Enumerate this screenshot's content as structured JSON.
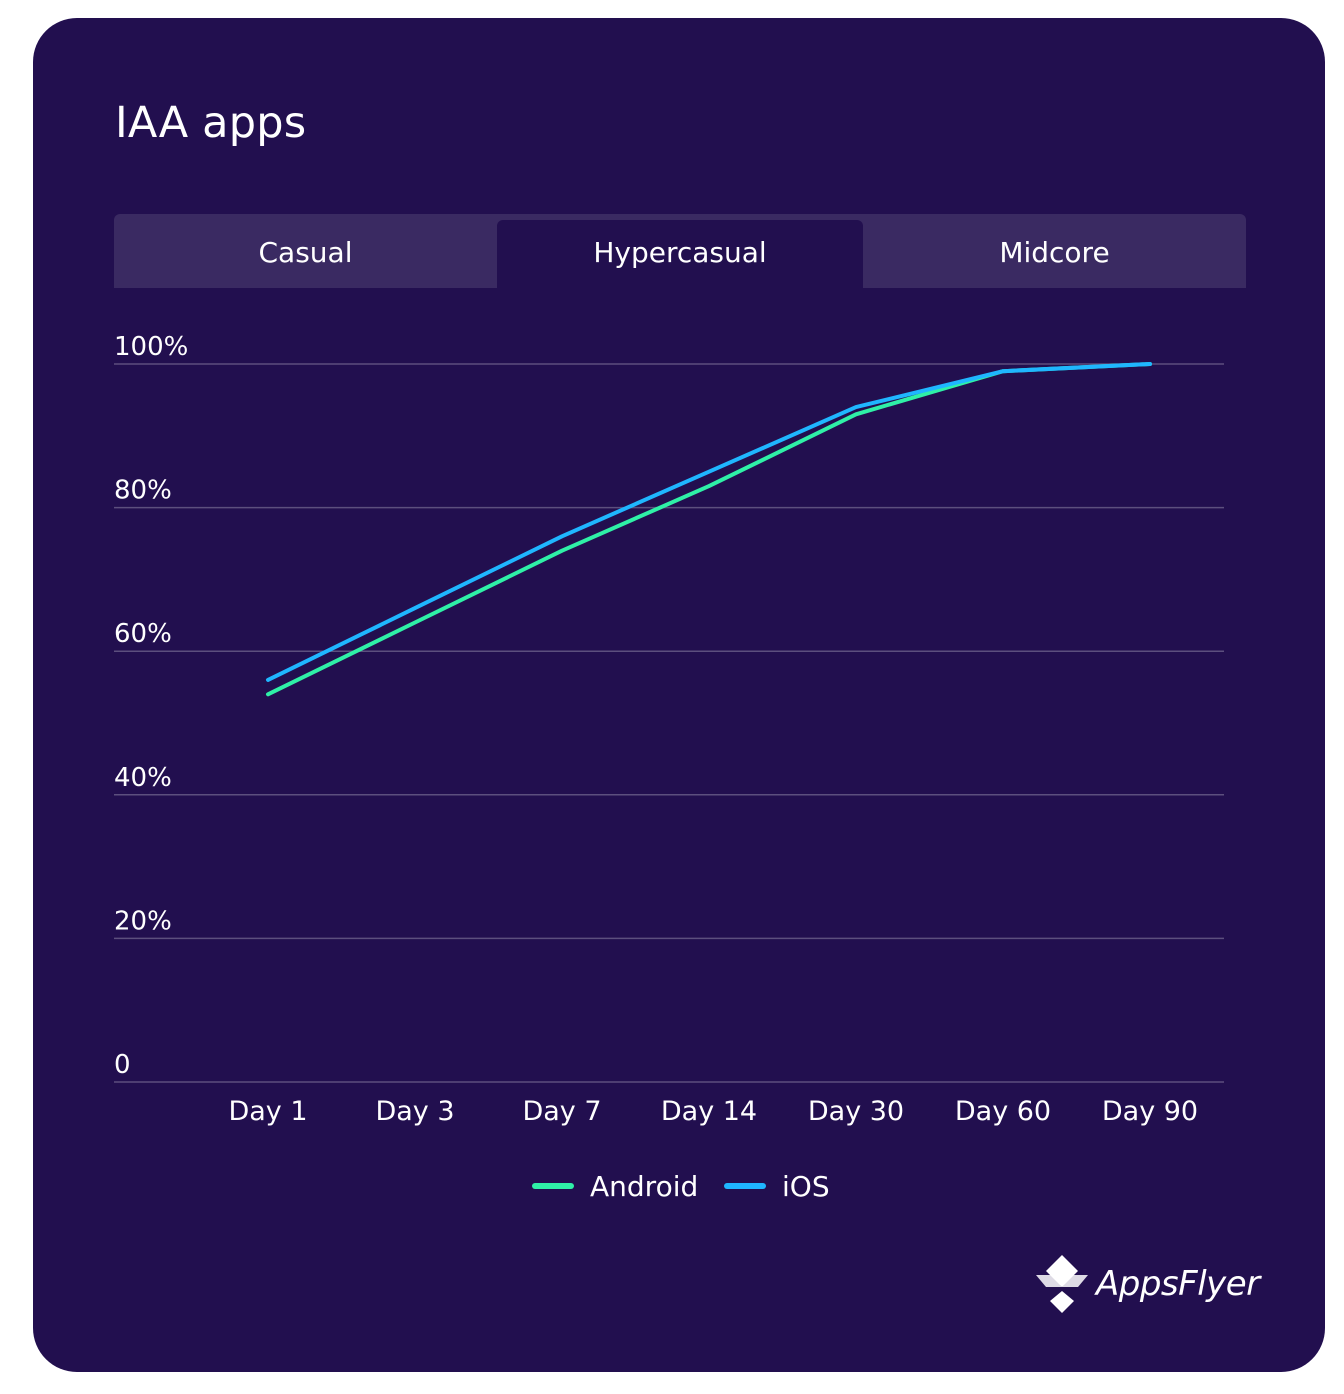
{
  "title": "IAA apps",
  "tabs": [
    {
      "label": "Casual",
      "active": false
    },
    {
      "label": "Hypercasual",
      "active": true
    },
    {
      "label": "Midcore",
      "active": false
    }
  ],
  "colors": {
    "background": "#220f4f",
    "tab_bar": "#3a2a62",
    "gridline": "#5c4f7e",
    "android": "#2ff0a7",
    "ios": "#1fb6ff"
  },
  "legend": [
    {
      "name": "Android",
      "color": "#2ff0a7"
    },
    {
      "name": "iOS",
      "color": "#1fb6ff"
    }
  ],
  "brand": {
    "name": "AppsFlyer",
    "icon": "appsflyer-logo-icon"
  },
  "chart_data": {
    "type": "line",
    "categories": [
      "Day 1",
      "Day 3",
      "Day 7",
      "Day 14",
      "Day 30",
      "Day 60",
      "Day 90"
    ],
    "y_ticks": [
      "0",
      "20%",
      "40%",
      "60%",
      "80%",
      "100%"
    ],
    "ylim": [
      0,
      100
    ],
    "grid": true,
    "legend_position": "bottom-center",
    "series": [
      {
        "name": "Android",
        "color": "#2ff0a7",
        "values": [
          54,
          64,
          74,
          83,
          93,
          99,
          100
        ]
      },
      {
        "name": "iOS",
        "color": "#1fb6ff",
        "values": [
          56,
          66,
          76,
          85,
          94,
          99,
          100
        ]
      }
    ]
  }
}
